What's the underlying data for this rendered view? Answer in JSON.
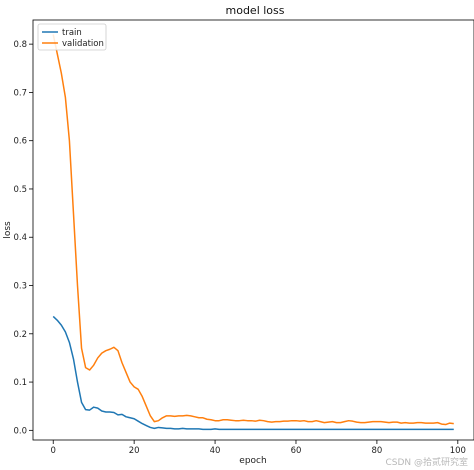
{
  "chart_data": {
    "type": "line",
    "title": "model loss",
    "xlabel": "epoch",
    "ylabel": "loss",
    "xlim": [
      -5,
      104
    ],
    "ylim": [
      -0.02,
      0.85
    ],
    "xticks": [
      0,
      20,
      40,
      60,
      80,
      100
    ],
    "yticks": [
      0.0,
      0.1,
      0.2,
      0.3,
      0.4,
      0.5,
      0.6,
      0.7,
      0.8
    ],
    "legend_position": "top-left",
    "grid": false,
    "series": [
      {
        "name": "train",
        "color": "#1f77b4",
        "x": [
          0,
          1,
          2,
          3,
          4,
          5,
          6,
          7,
          8,
          9,
          10,
          11,
          12,
          13,
          14,
          15,
          16,
          17,
          18,
          19,
          20,
          21,
          22,
          23,
          24,
          25,
          26,
          27,
          28,
          29,
          30,
          31,
          32,
          33,
          34,
          35,
          36,
          37,
          38,
          39,
          40,
          41,
          42,
          43,
          44,
          45,
          46,
          47,
          48,
          49,
          50,
          51,
          52,
          53,
          54,
          55,
          56,
          57,
          58,
          59,
          60,
          61,
          62,
          63,
          64,
          65,
          66,
          67,
          68,
          69,
          70,
          71,
          72,
          73,
          74,
          75,
          76,
          77,
          78,
          79,
          80,
          81,
          82,
          83,
          84,
          85,
          86,
          87,
          88,
          89,
          90,
          91,
          92,
          93,
          94,
          95,
          96,
          97,
          98,
          99
        ],
        "y": [
          0.236,
          0.228,
          0.218,
          0.204,
          0.182,
          0.148,
          0.1,
          0.058,
          0.043,
          0.042,
          0.048,
          0.046,
          0.04,
          0.038,
          0.038,
          0.037,
          0.032,
          0.033,
          0.028,
          0.026,
          0.024,
          0.019,
          0.014,
          0.01,
          0.006,
          0.004,
          0.006,
          0.005,
          0.004,
          0.004,
          0.003,
          0.003,
          0.004,
          0.003,
          0.003,
          0.003,
          0.003,
          0.002,
          0.002,
          0.002,
          0.003,
          0.002,
          0.002,
          0.002,
          0.002,
          0.002,
          0.002,
          0.002,
          0.002,
          0.002,
          0.002,
          0.002,
          0.002,
          0.002,
          0.002,
          0.002,
          0.002,
          0.002,
          0.002,
          0.002,
          0.002,
          0.002,
          0.002,
          0.002,
          0.002,
          0.002,
          0.002,
          0.002,
          0.002,
          0.002,
          0.002,
          0.002,
          0.002,
          0.002,
          0.002,
          0.002,
          0.002,
          0.002,
          0.002,
          0.002,
          0.002,
          0.002,
          0.002,
          0.002,
          0.002,
          0.002,
          0.002,
          0.002,
          0.002,
          0.002,
          0.002,
          0.002,
          0.002,
          0.002,
          0.002,
          0.002,
          0.002,
          0.002,
          0.002,
          0.002
        ]
      },
      {
        "name": "validation",
        "color": "#ff7f0e",
        "x": [
          0,
          1,
          2,
          3,
          4,
          5,
          6,
          7,
          8,
          9,
          10,
          11,
          12,
          13,
          14,
          15,
          16,
          17,
          18,
          19,
          20,
          21,
          22,
          23,
          24,
          25,
          26,
          27,
          28,
          29,
          30,
          31,
          32,
          33,
          34,
          35,
          36,
          37,
          38,
          39,
          40,
          41,
          42,
          43,
          44,
          45,
          46,
          47,
          48,
          49,
          50,
          51,
          52,
          53,
          54,
          55,
          56,
          57,
          58,
          59,
          60,
          61,
          62,
          63,
          64,
          65,
          66,
          67,
          68,
          69,
          70,
          71,
          72,
          73,
          74,
          75,
          76,
          77,
          78,
          79,
          80,
          81,
          82,
          83,
          84,
          85,
          86,
          87,
          88,
          89,
          90,
          91,
          92,
          93,
          94,
          95,
          96,
          97,
          98,
          99
        ],
        "y": [
          0.82,
          0.78,
          0.74,
          0.69,
          0.6,
          0.45,
          0.3,
          0.17,
          0.13,
          0.125,
          0.135,
          0.15,
          0.16,
          0.165,
          0.168,
          0.172,
          0.165,
          0.14,
          0.12,
          0.1,
          0.09,
          0.085,
          0.07,
          0.05,
          0.03,
          0.018,
          0.02,
          0.026,
          0.03,
          0.03,
          0.029,
          0.03,
          0.03,
          0.031,
          0.03,
          0.028,
          0.026,
          0.026,
          0.023,
          0.022,
          0.02,
          0.02,
          0.022,
          0.022,
          0.021,
          0.02,
          0.02,
          0.021,
          0.02,
          0.02,
          0.019,
          0.021,
          0.02,
          0.018,
          0.017,
          0.018,
          0.018,
          0.019,
          0.019,
          0.02,
          0.02,
          0.019,
          0.02,
          0.018,
          0.018,
          0.02,
          0.018,
          0.016,
          0.017,
          0.018,
          0.016,
          0.016,
          0.018,
          0.02,
          0.019,
          0.017,
          0.016,
          0.016,
          0.017,
          0.018,
          0.018,
          0.018,
          0.017,
          0.016,
          0.017,
          0.017,
          0.015,
          0.016,
          0.015,
          0.015,
          0.016,
          0.016,
          0.015,
          0.015,
          0.015,
          0.016,
          0.013,
          0.012,
          0.015,
          0.014
        ]
      }
    ]
  },
  "watermark": "CSDN @拾贰研究室"
}
